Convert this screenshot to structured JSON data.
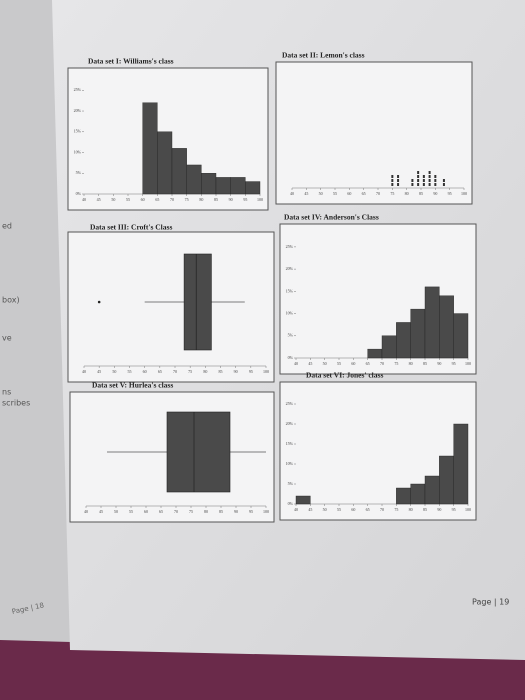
{
  "page": {
    "left_fragments": [
      "ed",
      "box)",
      "ve",
      "ns",
      "scribes"
    ],
    "left_footer": "Page | 18",
    "right_footer": "Page | 19"
  },
  "chart_data": [
    {
      "type": "histogram",
      "title": "Data set I: Williams's class",
      "bins": [
        60,
        65,
        70,
        75,
        80,
        85,
        90,
        95,
        100
      ],
      "values": [
        22,
        15,
        11,
        7,
        5,
        4,
        4,
        3
      ],
      "color": "#4a4a4a",
      "xlim": [
        40,
        100
      ],
      "xticks": [
        40,
        45,
        50,
        55,
        60,
        65,
        70,
        75,
        80,
        85,
        90,
        95,
        100
      ],
      "ylim": [
        0,
        27
      ],
      "yticks": [
        {
          "value": 0,
          "label": "0%"
        },
        {
          "value": 5,
          "label": "5%"
        },
        {
          "value": 10,
          "label": "10%"
        },
        {
          "value": 15,
          "label": "15%"
        },
        {
          "value": 20,
          "label": "20%"
        },
        {
          "value": 25,
          "label": "25%"
        }
      ]
    },
    {
      "type": "dot",
      "title": "Data set II: Lemon's class",
      "x": [
        75,
        77,
        82,
        84,
        86,
        88,
        90,
        93
      ],
      "values": [
        3,
        3,
        2,
        4,
        3,
        4,
        3,
        2
      ],
      "color": "#333333",
      "xlim": [
        40,
        100
      ],
      "xticks": [
        40,
        45,
        50,
        55,
        60,
        65,
        70,
        75,
        80,
        85,
        90,
        95,
        100
      ]
    },
    {
      "type": "box",
      "title": "Data set III: Croft's Class",
      "min": 60,
      "q1": 73,
      "median": 77,
      "q3": 82,
      "max": 93,
      "outliers": [
        45
      ],
      "color": "#4a4a4a",
      "xlim": [
        40,
        100
      ],
      "xticks": [
        40,
        45,
        50,
        55,
        60,
        65,
        70,
        75,
        80,
        85,
        90,
        95,
        100
      ]
    },
    {
      "type": "histogram",
      "title": "Data set IV: Anderson's Class",
      "bins": [
        65,
        70,
        75,
        80,
        85,
        90,
        95,
        100
      ],
      "values": [
        2,
        5,
        8,
        11,
        16,
        14,
        10
      ],
      "color": "#4a4a4a",
      "xlim": [
        40,
        100
      ],
      "xticks": [
        40,
        45,
        50,
        55,
        60,
        65,
        70,
        75,
        80,
        85,
        90,
        95,
        100
      ],
      "ylim": [
        0,
        27
      ],
      "yticks": [
        {
          "value": 0,
          "label": "0%"
        },
        {
          "value": 5,
          "label": "5%"
        },
        {
          "value": 10,
          "label": "10%"
        },
        {
          "value": 15,
          "label": "15%"
        },
        {
          "value": 20,
          "label": "20%"
        },
        {
          "value": 25,
          "label": "25%"
        }
      ]
    },
    {
      "type": "box",
      "title": "Data set V: Hurlea's class",
      "min": 47,
      "q1": 67,
      "median": 76,
      "q3": 88,
      "max": 100,
      "outliers": [],
      "color": "#4a4a4a",
      "xlim": [
        40,
        100
      ],
      "xticks": [
        40,
        45,
        50,
        55,
        60,
        65,
        70,
        75,
        80,
        85,
        90,
        95,
        100
      ]
    },
    {
      "type": "histogram",
      "title": "Data set VI: Jones' class",
      "bins": [
        40,
        45,
        50,
        55,
        60,
        65,
        70,
        75,
        80,
        85,
        90,
        95,
        100
      ],
      "values": [
        2,
        0,
        0,
        0,
        0,
        0,
        0,
        4,
        5,
        7,
        12,
        20
      ],
      "color": "#4a4a4a",
      "xlim": [
        40,
        100
      ],
      "xticks": [
        40,
        45,
        50,
        55,
        60,
        65,
        70,
        75,
        80,
        85,
        90,
        95,
        100
      ],
      "ylim": [
        0,
        27
      ],
      "yticks": [
        {
          "value": 0,
          "label": "0%"
        },
        {
          "value": 5,
          "label": "5%"
        },
        {
          "value": 10,
          "label": "10%"
        },
        {
          "value": 15,
          "label": "15%"
        },
        {
          "value": 20,
          "label": "20%"
        },
        {
          "value": 25,
          "label": "25%"
        }
      ]
    }
  ]
}
